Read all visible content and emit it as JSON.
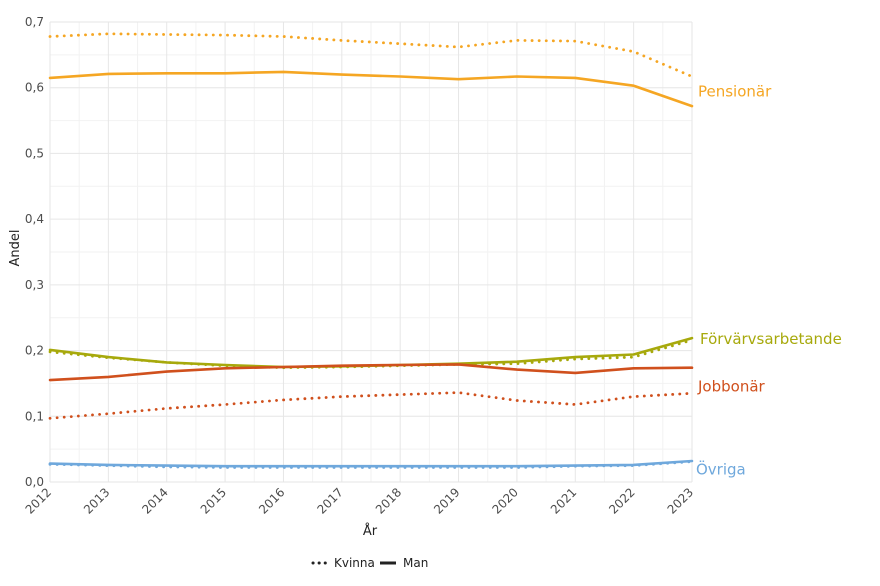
{
  "chart_data": {
    "type": "line",
    "xlabel": "År",
    "ylabel": "Andel",
    "x": [
      2012,
      2013,
      2014,
      2015,
      2016,
      2017,
      2018,
      2019,
      2020,
      2021,
      2022,
      2023
    ],
    "ylim": [
      0,
      0.7
    ],
    "yticks": [
      "0,0",
      "0,1",
      "0,2",
      "0,3",
      "0,4",
      "0,5",
      "0,6",
      "0,7"
    ],
    "grid": true,
    "groups": [
      {
        "label": "Pensionär",
        "color": "#F5A623",
        "kvinna": [
          0.678,
          0.682,
          0.681,
          0.68,
          0.678,
          0.672,
          0.667,
          0.662,
          0.672,
          0.671,
          0.655,
          0.617
        ],
        "man": [
          0.615,
          0.621,
          0.622,
          0.622,
          0.624,
          0.62,
          0.617,
          0.613,
          0.617,
          0.615,
          0.603,
          0.572
        ]
      },
      {
        "label": "Förvärvsarbetande",
        "color": "#A7A90C",
        "kvinna": [
          0.198,
          0.189,
          0.182,
          0.177,
          0.174,
          0.175,
          0.177,
          0.179,
          0.18,
          0.187,
          0.19,
          0.216
        ],
        "man": [
          0.201,
          0.19,
          0.182,
          0.178,
          0.175,
          0.176,
          0.178,
          0.18,
          0.183,
          0.19,
          0.194,
          0.219
        ]
      },
      {
        "label": "Jobbonär",
        "color": "#D0501D",
        "kvinna": [
          0.097,
          0.104,
          0.112,
          0.118,
          0.125,
          0.13,
          0.133,
          0.136,
          0.124,
          0.118,
          0.13,
          0.135
        ],
        "man": [
          0.155,
          0.16,
          0.168,
          0.173,
          0.175,
          0.177,
          0.178,
          0.179,
          0.171,
          0.166,
          0.173,
          0.174
        ]
      },
      {
        "label": "Övriga",
        "color": "#6FA8DC",
        "kvinna": [
          0.027,
          0.025,
          0.023,
          0.022,
          0.022,
          0.022,
          0.022,
          0.022,
          0.022,
          0.024,
          0.025,
          0.031
        ],
        "man": [
          0.028,
          0.026,
          0.025,
          0.024,
          0.024,
          0.024,
          0.024,
          0.024,
          0.024,
          0.025,
          0.026,
          0.032
        ]
      }
    ],
    "legend": {
      "position": "bottom",
      "items": [
        {
          "label": "Kvinna",
          "style": "dotted"
        },
        {
          "label": "Man",
          "style": "solid"
        }
      ]
    }
  }
}
